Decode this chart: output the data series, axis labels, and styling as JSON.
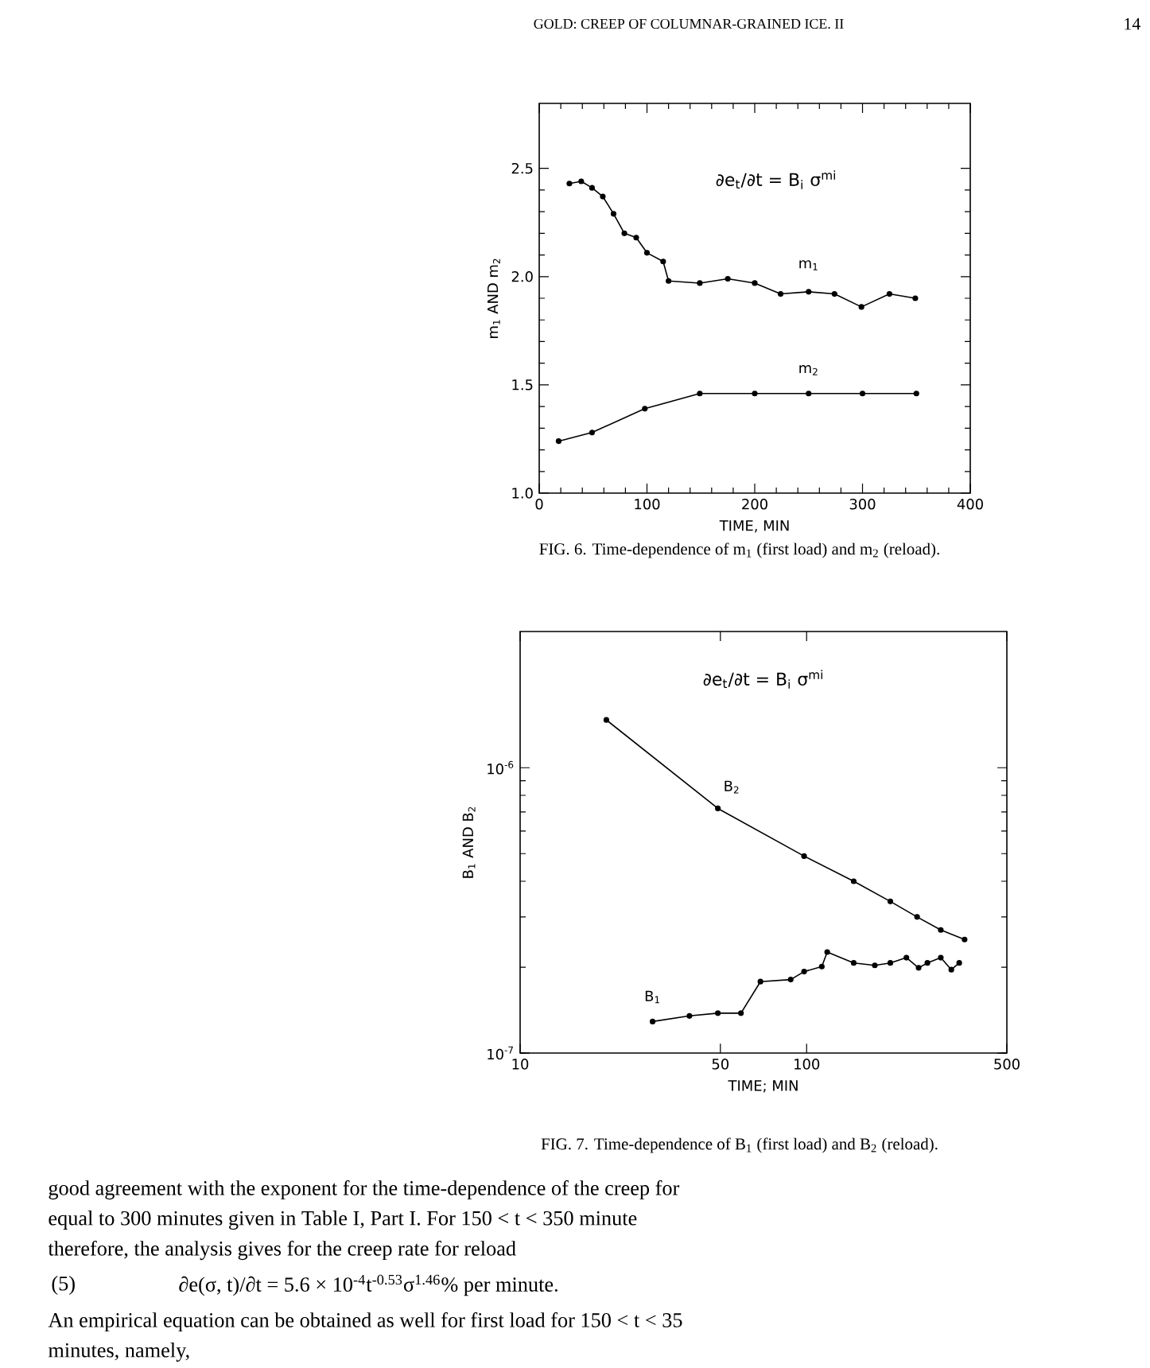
{
  "chart_data": [
    {
      "type": "line",
      "xlabel": "TIME, MIN",
      "ylabel": "m$_{1}$ AND m$_{2}$",
      "xlim": [
        0,
        400
      ],
      "ylim": [
        1.0,
        2.8
      ],
      "xticks": [
        0,
        100,
        200,
        300,
        400
      ],
      "yticks": [
        {
          "value": 1.0,
          "label": "1.0"
        },
        {
          "value": 1.5,
          "label": "1.5"
        },
        {
          "value": 2.0,
          "label": "2.0"
        },
        {
          "value": 2.5,
          "label": "2.5"
        }
      ],
      "marker": "circle",
      "line_style": "solid",
      "series": [
        {
          "name": "m$_{1}$",
          "color": "#000000",
          "x": [
            28,
            39,
            49,
            59,
            69,
            79,
            90,
            100,
            115,
            120,
            149,
            175,
            200,
            224,
            250,
            274,
            299,
            325,
            349
          ],
          "values": [
            2.43,
            2.44,
            2.41,
            2.37,
            2.29,
            2.2,
            2.18,
            2.11,
            2.07,
            1.98,
            1.97,
            1.99,
            1.97,
            1.92,
            1.93,
            1.92,
            1.86,
            1.92,
            1.9
          ]
        },
        {
          "name": "m$_{2}$",
          "color": "#000000",
          "x": [
            18,
            49,
            98,
            149,
            200,
            250,
            300,
            350
          ],
          "values": [
            1.24,
            1.28,
            1.39,
            1.46,
            1.46,
            1.46,
            1.46,
            1.46
          ]
        }
      ],
      "annotations": [
        "GOLD: CREEP OF COLUMNAR-GRAINED ICE. II",
        "14",
        "∂e$_{t}$/∂t = B$_{i}$ σ$^{mi}$",
        "FIG. 6.   Time-dependence of m$_{1}$ (first load) and m$_{2}$ (reload)."
      ]
    },
    {
      "type": "line",
      "xlabel": "TIME; MIN",
      "ylabel": "B$_{1}$ AND B$_{2}$",
      "log": "xy",
      "xlim": [
        10,
        500
      ],
      "ylim": [
        1e-07,
        3e-06
      ],
      "xticks": [
        10,
        50,
        100,
        500
      ],
      "yticks": [
        {
          "value": 1e-07,
          "label": "10$^{-7}$"
        },
        {
          "value": 1e-06,
          "label": "10$^{-6}$"
        }
      ],
      "marker": "circle",
      "line_style": "solid",
      "series": [
        {
          "name": "B$_{2}$",
          "color": "#000000",
          "x": [
            20,
            49,
            98,
            146,
            196,
            243,
            294,
            356
          ],
          "values": [
            1.47e-06,
            7.2e-07,
            4.9e-07,
            4e-07,
            3.4e-07,
            3e-07,
            2.7e-07,
            2.5e-07
          ]
        },
        {
          "name": "B$_{1}$",
          "color": "#000000",
          "x": [
            29,
            39,
            49,
            59,
            69,
            88,
            98,
            113,
            118,
            146,
            173,
            196,
            223,
            246,
            264,
            294,
            320,
            341
          ],
          "values": [
            1.29e-07,
            1.35e-07,
            1.38e-07,
            1.38e-07,
            1.78e-07,
            1.81e-07,
            1.93e-07,
            2.01e-07,
            2.26e-07,
            2.07e-07,
            2.03e-07,
            2.07e-07,
            2.16e-07,
            1.99e-07,
            2.07e-07,
            2.16e-07,
            1.96e-07,
            2.07e-07
          ]
        }
      ],
      "annotations": [
        "∂e$_{t}$/∂t = B$_{i}$ σ$^{mi}$",
        "FIG. 7.   Time-dependence of B$_{1}$ (first load) and B$_{2}$ (reload).",
        "good agreement with the exponent for the time-dependence of the creep for",
        "equal to 300 minutes given in Table I, Part I. For 150 < t < 350 minute",
        "therefore, the analysis gives for the creep rate for reload",
        "(5)",
        "∂e(σ, t)/∂t = 5.6 × 10$^{-4}$t$^{-0.53}$σ$^{1.46}$% per minute.",
        "An empirical equation can be obtained as well for first load for 150 < t < 35",
        "minutes, namely,"
      ]
    }
  ]
}
